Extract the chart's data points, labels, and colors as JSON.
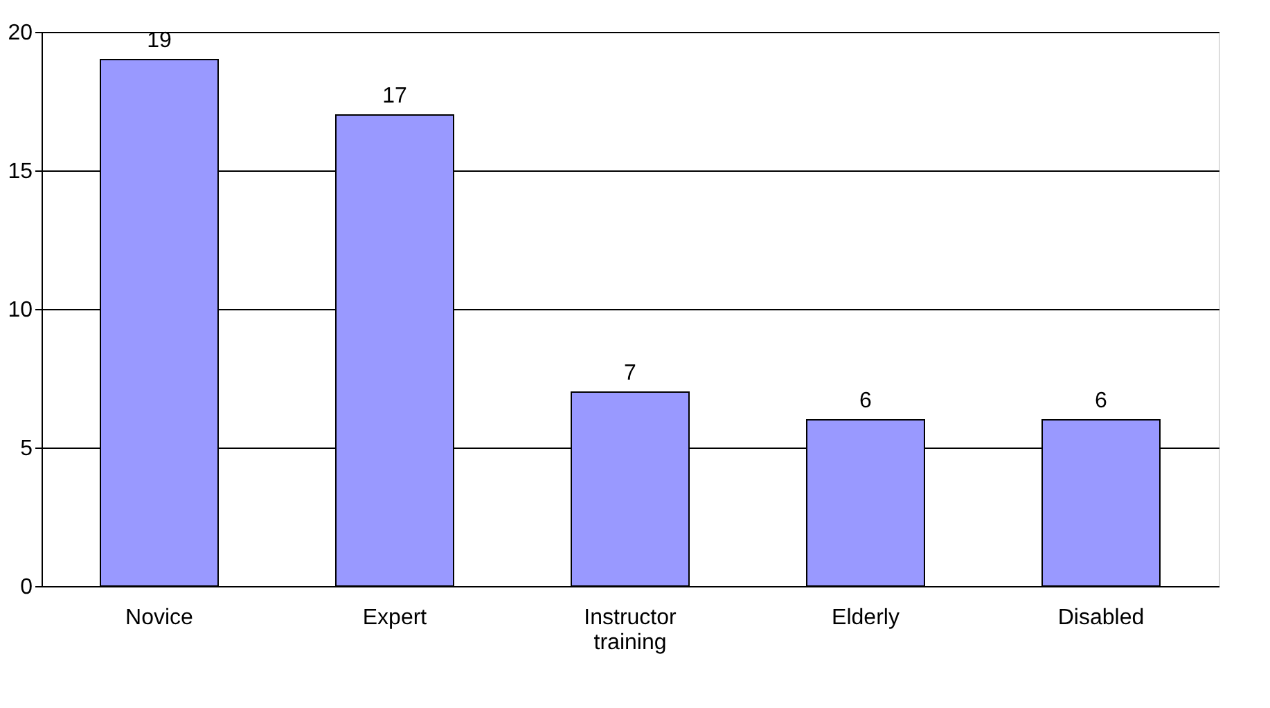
{
  "chart_data": {
    "type": "bar",
    "categories": [
      "Novice",
      "Expert",
      "Instructor training",
      "Elderly",
      "Disabled"
    ],
    "values": [
      19,
      17,
      7,
      6,
      6
    ],
    "color": "#9999ff",
    "ylim": [
      0,
      20
    ],
    "yticks": [
      0,
      5,
      10,
      15,
      20
    ],
    "grid": "y",
    "data_labels": true
  }
}
